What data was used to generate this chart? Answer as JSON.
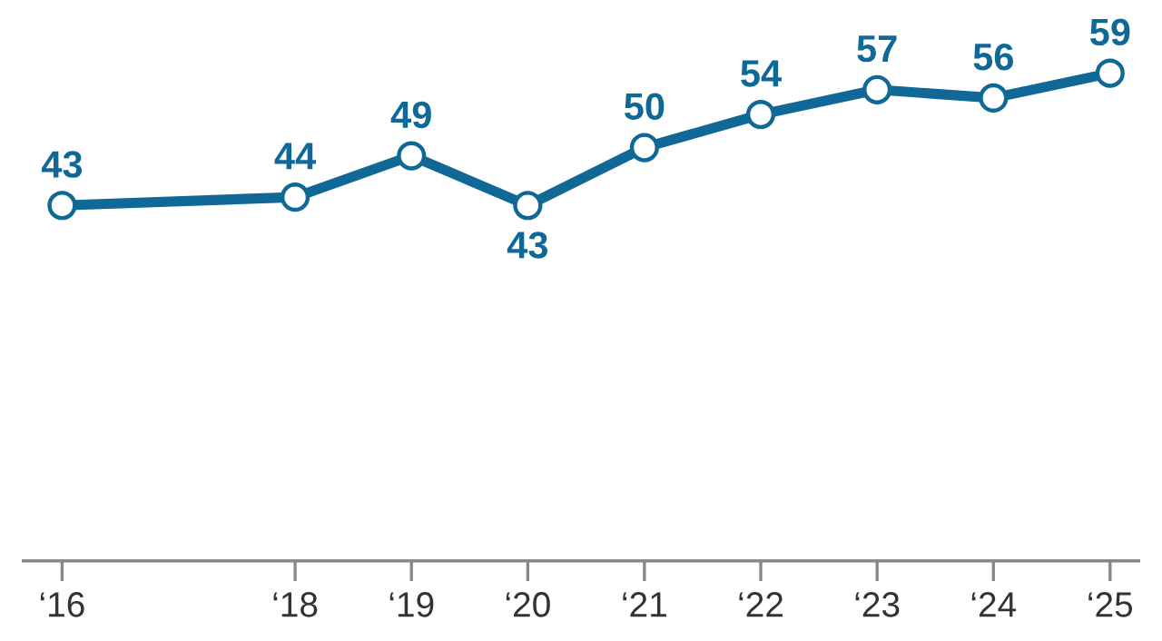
{
  "chart_data": {
    "type": "line",
    "x": [
      "2016",
      "2018",
      "2019",
      "2020",
      "2021",
      "2022",
      "2023",
      "2024",
      "2025"
    ],
    "series": [
      {
        "color": "#0f6896",
        "values": [
          43,
          44,
          49,
          43,
          50,
          54,
          57,
          56,
          59
        ]
      }
    ],
    "xlim": [
      "2015-09",
      "2025-04"
    ],
    "xticks": [
      {
        "value": "2016",
        "label": "‘16"
      },
      {
        "value": "2018",
        "label": "‘18"
      },
      {
        "value": "2019",
        "label": "‘19"
      },
      {
        "value": "2020",
        "label": "‘20"
      },
      {
        "value": "2021",
        "label": "‘21"
      },
      {
        "value": "2022",
        "label": "‘22"
      },
      {
        "value": "2023",
        "label": "‘23"
      },
      {
        "value": "2024",
        "label": "‘24"
      },
      {
        "value": "2025",
        "label": "‘25"
      }
    ],
    "tick_labels": "x",
    "data_labels": true,
    "marker": "circle",
    "line_style": "solid",
    "grid": false,
    "legend": false
  }
}
